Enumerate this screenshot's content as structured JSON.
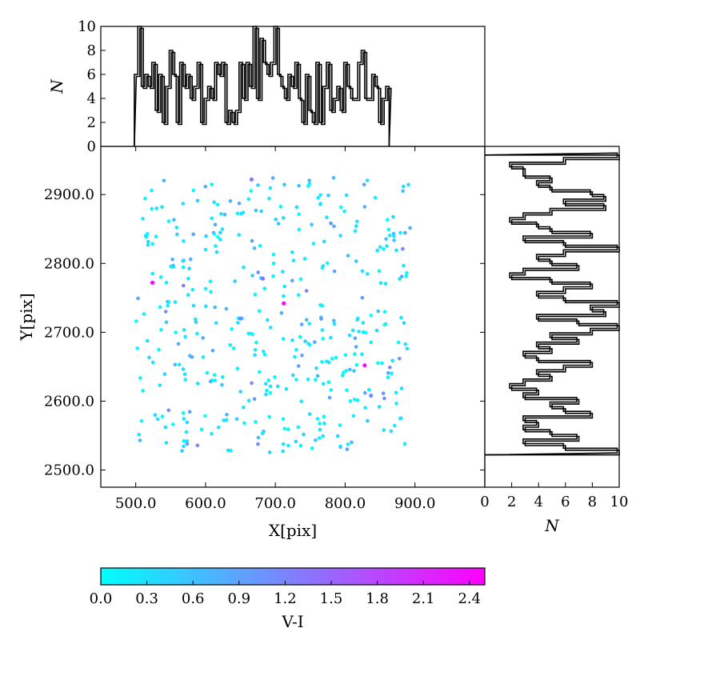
{
  "chart_data": [
    {
      "type": "scatter",
      "xlabel": "X[pix]",
      "ylabel": "Y[pix]",
      "xlim": [
        450,
        1000
      ],
      "ylim": [
        2475,
        2970
      ],
      "xticks": [
        "500.0",
        "600.0",
        "700.0",
        "800.0",
        "900.0"
      ],
      "xtick_values": [
        500,
        600,
        700,
        800,
        900
      ],
      "yticks": [
        "2500.0",
        "2600.0",
        "2700.0",
        "2800.0",
        "2900.0"
      ],
      "ytick_values": [
        2500,
        2600,
        2700,
        2800,
        2900
      ],
      "colormap": [
        "#00ffff",
        "#ff00ff"
      ],
      "color_range": [
        0.0,
        2.5
      ],
      "grid": false,
      "points_note_count": 420,
      "highlight_points": [
        {
          "x": 524,
          "y": 2772,
          "c": 2.45
        },
        {
          "x": 712,
          "y": 2742,
          "c": 2.45
        },
        {
          "x": 828,
          "y": 2652,
          "c": 2.35
        },
        {
          "x": 682,
          "y": 2778,
          "c": 1.4
        },
        {
          "x": 650,
          "y": 2720,
          "c": 1.2
        },
        {
          "x": 666,
          "y": 2922,
          "c": 1.3
        },
        {
          "x": 837,
          "y": 2608,
          "c": 1.1
        }
      ]
    },
    {
      "type": "bar",
      "subtype": "histogram-step",
      "ylabel": "N",
      "ylim": [
        0,
        10
      ],
      "yticks": [
        "0",
        "2",
        "4",
        "6",
        "8",
        "10"
      ],
      "ytick_values": [
        0,
        2,
        4,
        6,
        8,
        10
      ],
      "bin_start": 498,
      "bin_width": 5,
      "values": [
        6,
        10,
        5,
        6,
        5,
        7,
        3,
        6,
        2,
        5,
        8,
        6,
        2,
        7,
        5,
        6,
        4,
        5,
        7,
        2,
        4,
        5,
        4,
        7,
        6,
        7,
        2,
        3,
        2,
        3,
        7,
        4,
        7,
        5,
        10,
        4,
        9,
        7,
        6,
        7,
        10,
        6,
        5,
        4,
        6,
        5,
        7,
        4,
        2,
        6,
        3,
        2,
        7,
        2,
        5,
        7,
        3,
        4,
        5,
        3,
        7,
        5,
        4,
        4,
        7,
        8,
        4,
        4,
        6,
        5,
        2,
        4,
        5
      ],
      "outline_color": "#000000"
    },
    {
      "type": "bar",
      "subtype": "histogram-step-horizontal",
      "xlabel": "N",
      "xlim": [
        0,
        10
      ],
      "xticks": [
        "0",
        "2",
        "4",
        "6",
        "8",
        "10"
      ],
      "xtick_values": [
        0,
        2,
        4,
        6,
        8,
        10
      ],
      "bin_start": 2522,
      "bin_width": 6.7,
      "values": [
        10,
        6,
        3,
        7,
        5,
        3,
        4,
        3,
        8,
        6,
        5,
        7,
        3,
        4,
        2,
        3,
        5,
        4,
        6,
        8,
        4,
        3,
        5,
        4,
        7,
        5,
        8,
        10,
        7,
        4,
        9,
        8,
        10,
        6,
        4,
        6,
        8,
        5,
        2,
        3,
        7,
        5,
        4,
        6,
        10,
        6,
        3,
        8,
        5,
        4,
        2,
        3,
        5,
        9,
        6,
        9,
        8,
        5,
        4,
        5,
        3,
        3,
        2,
        6,
        10
      ],
      "outline_color": "#000000"
    },
    {
      "type": "heatmap",
      "subtype": "colorbar",
      "xlabel": "V-I",
      "range": [
        0.0,
        2.5
      ],
      "ticks": [
        "0.0",
        "0.3",
        "0.6",
        "0.9",
        "1.2",
        "1.5",
        "1.8",
        "2.1",
        "2.4"
      ],
      "tick_values": [
        0.0,
        0.3,
        0.6,
        0.9,
        1.2,
        1.5,
        1.8,
        2.1,
        2.4
      ],
      "colors": [
        "#00ffff",
        "#ff00ff"
      ]
    }
  ]
}
